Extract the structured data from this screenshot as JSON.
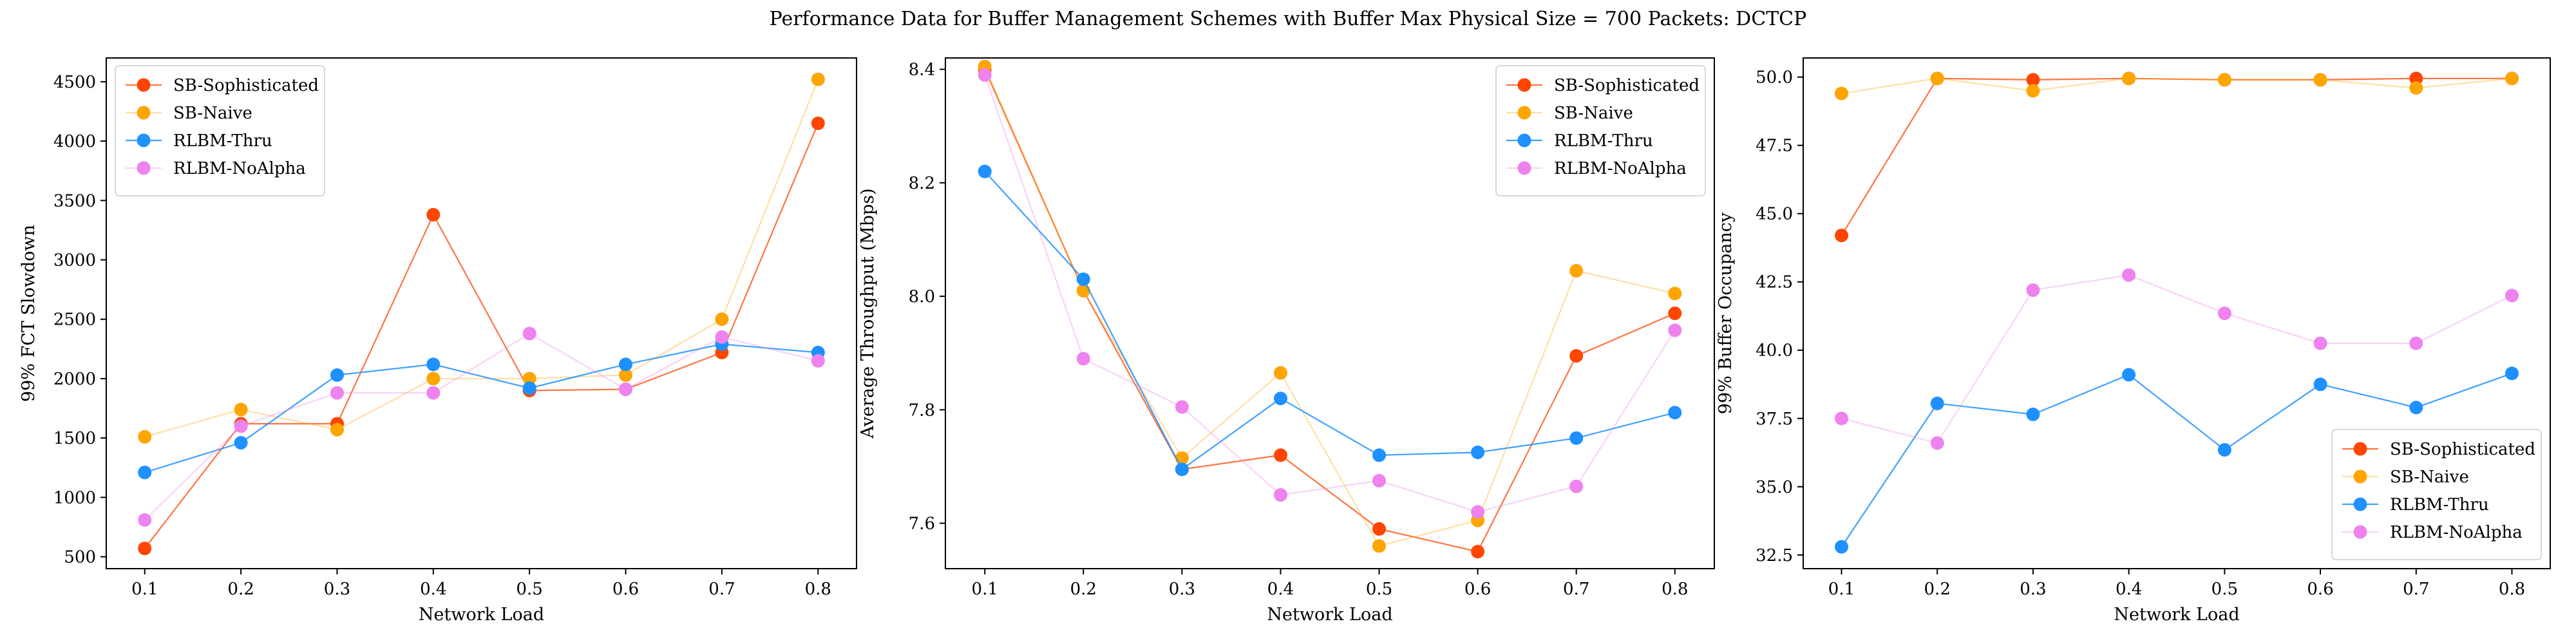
{
  "figure": {
    "title": "Performance Data for Buffer Management Schemes with Buffer Max Physical Size = 700 Packets: DCTCP"
  },
  "chart_data": [
    {
      "type": "line",
      "xlabel": "Network Load",
      "ylabel": "99% FCT Slowdown",
      "x": [
        0.1,
        0.2,
        0.3,
        0.4,
        0.5,
        0.6,
        0.7,
        0.8
      ],
      "xlim": [
        0.06,
        0.84
      ],
      "ylim": [
        400,
        4700
      ],
      "xticks": [
        "0.1",
        "0.2",
        "0.3",
        "0.4",
        "0.5",
        "0.6",
        "0.7",
        "0.8"
      ],
      "yticks": [
        500,
        1000,
        1500,
        2000,
        2500,
        3000,
        3500,
        4000,
        4500
      ],
      "ytick_labels": [
        "500",
        "1000",
        "1500",
        "2000",
        "2500",
        "3000",
        "3500",
        "4000",
        "4500"
      ],
      "legend_loc": "upper left",
      "series": [
        {
          "name": "SB-Sophisticated",
          "values": [
            570,
            1620,
            1620,
            3380,
            1900,
            1910,
            2220,
            4150
          ]
        },
        {
          "name": "SB-Naive",
          "values": [
            1510,
            1740,
            1570,
            2000,
            2000,
            2030,
            2500,
            4520
          ]
        },
        {
          "name": "RLBM-Thru",
          "values": [
            1210,
            1460,
            2030,
            2120,
            1920,
            2120,
            2290,
            2220
          ]
        },
        {
          "name": "RLBM-NoAlpha",
          "values": [
            810,
            1600,
            1880,
            1880,
            2380,
            1910,
            2350,
            2150
          ]
        }
      ]
    },
    {
      "type": "line",
      "xlabel": "Network Load",
      "ylabel": "Average Throughput (Mbps)",
      "x": [
        0.1,
        0.2,
        0.3,
        0.4,
        0.5,
        0.6,
        0.7,
        0.8
      ],
      "xlim": [
        0.06,
        0.84
      ],
      "ylim": [
        7.52,
        8.42
      ],
      "xticks": [
        "0.1",
        "0.2",
        "0.3",
        "0.4",
        "0.5",
        "0.6",
        "0.7",
        "0.8"
      ],
      "yticks": [
        7.6,
        7.8,
        8.0,
        8.2,
        8.4
      ],
      "ytick_labels": [
        "7.6",
        "7.8",
        "8.0",
        "8.2",
        "8.4"
      ],
      "legend_loc": "upper right",
      "series": [
        {
          "name": "SB-Sophisticated",
          "values": [
            8.4,
            8.01,
            7.695,
            7.72,
            7.59,
            7.55,
            7.895,
            7.97
          ]
        },
        {
          "name": "SB-Naive",
          "values": [
            8.405,
            8.01,
            7.715,
            7.865,
            7.56,
            7.605,
            8.045,
            8.005
          ]
        },
        {
          "name": "RLBM-Thru",
          "values": [
            8.22,
            8.03,
            7.695,
            7.82,
            7.72,
            7.725,
            7.75,
            7.795
          ]
        },
        {
          "name": "RLBM-NoAlpha",
          "values": [
            8.39,
            7.89,
            7.805,
            7.65,
            7.675,
            7.62,
            7.665,
            7.94
          ]
        }
      ]
    },
    {
      "type": "line",
      "xlabel": "Network Load",
      "ylabel": "99% Buffer Occupancy",
      "x": [
        0.1,
        0.2,
        0.3,
        0.4,
        0.5,
        0.6,
        0.7,
        0.8
      ],
      "xlim": [
        0.06,
        0.84
      ],
      "ylim": [
        32.0,
        50.7
      ],
      "xticks": [
        "0.1",
        "0.2",
        "0.3",
        "0.4",
        "0.5",
        "0.6",
        "0.7",
        "0.8"
      ],
      "yticks": [
        32.5,
        35.0,
        37.5,
        40.0,
        42.5,
        45.0,
        47.5,
        50.0
      ],
      "ytick_labels": [
        "32.5",
        "35.0",
        "37.5",
        "40.0",
        "42.5",
        "45.0",
        "47.5",
        "50.0"
      ],
      "legend_loc": "lower right",
      "series": [
        {
          "name": "SB-Sophisticated",
          "values": [
            44.2,
            49.95,
            49.9,
            49.95,
            49.9,
            49.9,
            49.95,
            49.95
          ]
        },
        {
          "name": "SB-Naive",
          "values": [
            49.4,
            49.95,
            49.5,
            49.95,
            49.9,
            49.9,
            49.6,
            49.95
          ]
        },
        {
          "name": "RLBM-Thru",
          "values": [
            32.8,
            38.05,
            37.65,
            39.1,
            36.35,
            38.75,
            37.9,
            39.15
          ]
        },
        {
          "name": "RLBM-NoAlpha",
          "values": [
            37.5,
            36.6,
            42.2,
            42.75,
            41.35,
            40.25,
            40.25,
            42.0
          ]
        }
      ]
    }
  ],
  "series_styles": [
    {
      "color": "#ff4500",
      "line_opacity": 0.75
    },
    {
      "color": "#ffa500",
      "line_opacity": 0.35
    },
    {
      "color": "#1e90ff",
      "line_opacity": 0.85
    },
    {
      "color": "#ee82ee",
      "line_opacity": 0.35
    }
  ]
}
